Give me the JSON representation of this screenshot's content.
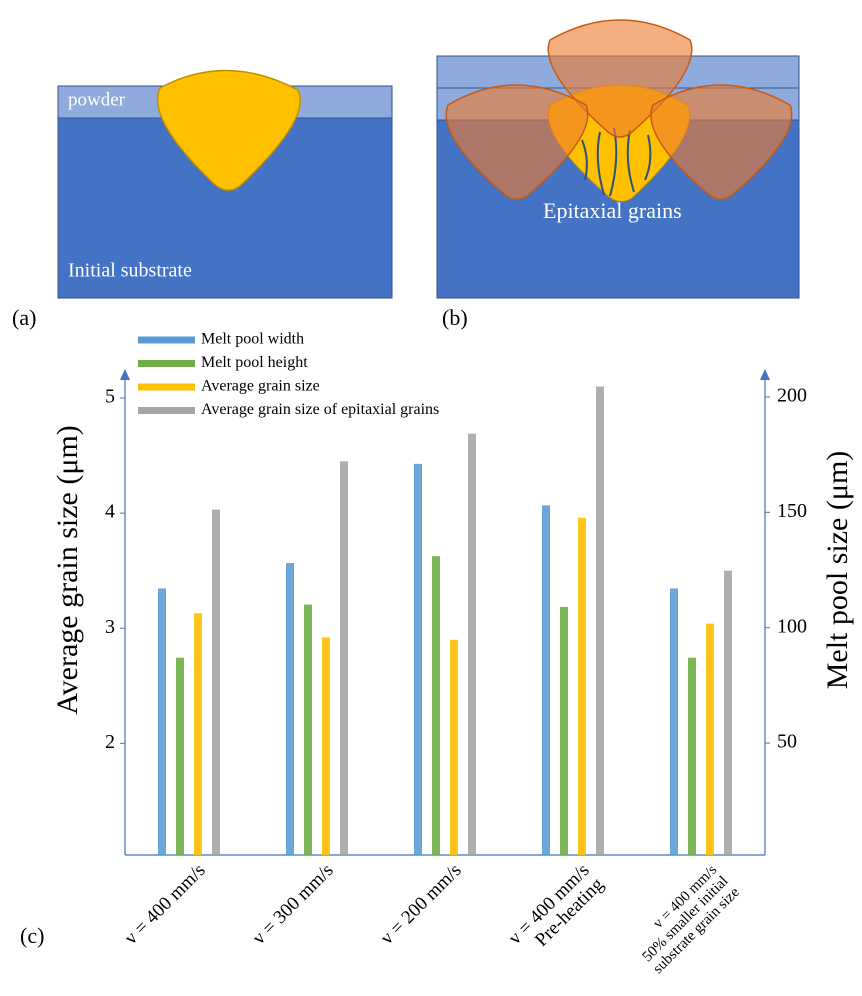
{
  "diagrams": {
    "a": {
      "label": "(a)",
      "powder": "powder",
      "substrate": "Initial substrate"
    },
    "b": {
      "label": "(b)",
      "grains": "Epitaxial grains"
    }
  },
  "chart_data": {
    "type": "bar",
    "label": "(c)",
    "categories": [
      [
        "v = 400 mm/s"
      ],
      [
        "v = 300 mm/s"
      ],
      [
        "v = 200 mm/s"
      ],
      [
        "v = 400 mm/s",
        "Pre-heating"
      ],
      [
        "v = 400 mm/s",
        "50% smaller initial",
        "substrate grain size"
      ]
    ],
    "ylabel": "Average grain size (μm)",
    "y2label": "Melt pool size (μm)",
    "ylim": [
      1.03,
      5.2
    ],
    "yticks": [
      2,
      3,
      4,
      5
    ],
    "y2lim": [
      1.5,
      209.5
    ],
    "y2ticks": [
      50,
      100,
      150,
      200
    ],
    "legend": "top-left",
    "series": [
      {
        "name": "Melt pool width",
        "color": "#5b9bd5",
        "axis": "y2",
        "values": [
          117,
          128,
          171,
          153,
          117
        ]
      },
      {
        "name": "Melt pool height",
        "color": "#70ad47",
        "axis": "y2",
        "values": [
          87,
          110,
          131,
          109,
          87
        ]
      },
      {
        "name": "Average grain size",
        "color": "#ffc000",
        "values": [
          3.13,
          2.92,
          2.9,
          3.96,
          3.04
        ]
      },
      {
        "name": "Average grain size of epitaxial grains",
        "color": "#a5a5a5",
        "values": [
          4.03,
          4.45,
          4.69,
          5.1,
          3.5
        ]
      }
    ]
  }
}
